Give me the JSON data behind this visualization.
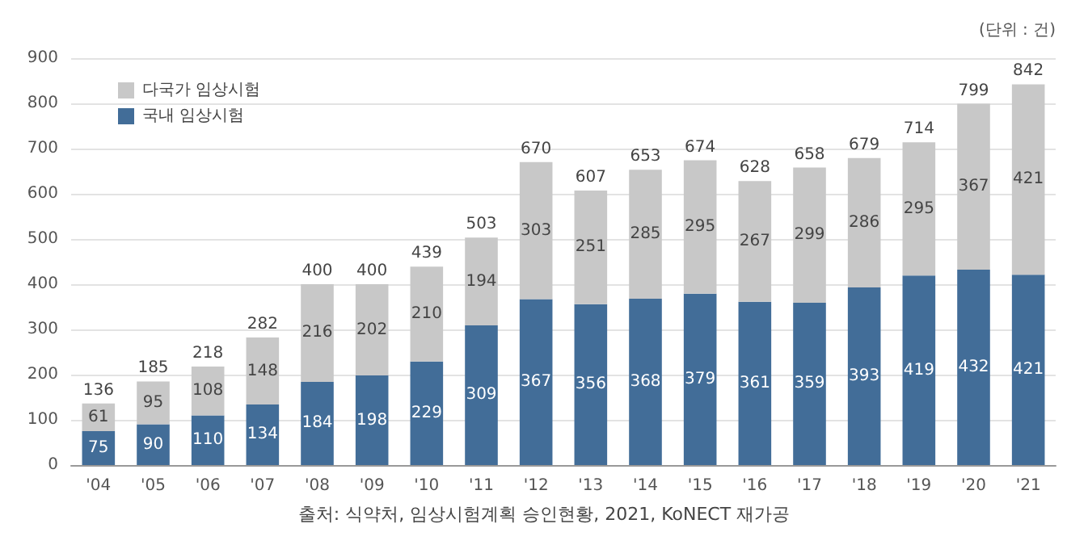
{
  "chart_data": {
    "type": "bar",
    "stacked": true,
    "categories": [
      "'04",
      "'05",
      "'06",
      "'07",
      "'08",
      "'09",
      "'10",
      "'11",
      "'12",
      "'13",
      "'14",
      "'15",
      "'16",
      "'17",
      "'18",
      "'19",
      "'20",
      "'21"
    ],
    "series": [
      {
        "name": "국내 임상시험",
        "color": "#426d98",
        "values": [
          75,
          90,
          110,
          134,
          184,
          198,
          229,
          309,
          367,
          356,
          368,
          379,
          361,
          359,
          393,
          419,
          432,
          421
        ]
      },
      {
        "name": "다국가 임상시험",
        "color": "#c8c8c8",
        "values": [
          61,
          95,
          108,
          148,
          216,
          202,
          210,
          194,
          303,
          251,
          285,
          295,
          267,
          299,
          286,
          295,
          367,
          421
        ]
      }
    ],
    "totals": [
      "136",
      "185",
      "218",
      "282",
      "400",
      "400",
      "439",
      "503",
      "670",
      "607",
      "653",
      "674",
      "628",
      "658",
      "679",
      "714",
      "799",
      "842"
    ],
    "data_labels": true,
    "ylim": [
      0,
      900
    ],
    "yticks": [
      0,
      100,
      200,
      300,
      400,
      500,
      600,
      700,
      800,
      900
    ],
    "grid": "y",
    "legend": "top left",
    "annotations": [
      "(단위 : 건)",
      "출처: 식약처, 임상시험계획 승인현황, 2021, KoNECT 재가공"
    ]
  }
}
